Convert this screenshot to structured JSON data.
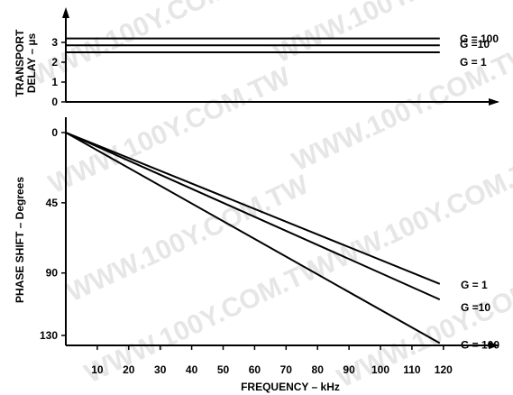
{
  "watermark": "WWW.100Y.COM.TW",
  "chart_data": [
    {
      "type": "line",
      "ylabel": "TRANSPORT\nDELAY – µs",
      "y_ticks": [
        0,
        1,
        2,
        3
      ],
      "y_ticklabels": [
        "0",
        "1",
        "2",
        "3"
      ],
      "ylim": [
        0,
        4.5
      ],
      "series": [
        {
          "name": "G = 100",
          "x": [
            0,
            120
          ],
          "y": [
            3.2,
            3.2
          ]
        },
        {
          "name": "G =10",
          "x": [
            0,
            120
          ],
          "y": [
            2.85,
            2.85
          ]
        },
        {
          "name": "G = 1",
          "x": [
            0,
            120
          ],
          "y": [
            2.5,
            2.5
          ]
        }
      ]
    },
    {
      "type": "line",
      "ylabel": "PHASE SHIFT – Degrees",
      "y_inverted": true,
      "y_ticks": [
        0,
        45,
        90,
        130
      ],
      "y_ticklabels": [
        "0",
        "45",
        "90",
        "130"
      ],
      "xlabel": "FREQUENCY – kHz",
      "x_ticks": [
        10,
        20,
        30,
        40,
        50,
        60,
        70,
        80,
        90,
        100,
        110,
        120
      ],
      "x_ticklabels": [
        "10",
        "20",
        "30",
        "40",
        "50",
        "60",
        "70",
        "80",
        "90",
        "100",
        "110",
        "120"
      ],
      "xlim": [
        0,
        125
      ],
      "series": [
        {
          "name": "G = 1",
          "x": [
            0,
            120
          ],
          "y": [
            0,
            97
          ]
        },
        {
          "name": "G =10",
          "x": [
            0,
            120
          ],
          "y": [
            0,
            107
          ]
        },
        {
          "name": "G = 100",
          "x": [
            0,
            120
          ],
          "y": [
            0,
            135
          ]
        }
      ]
    }
  ]
}
